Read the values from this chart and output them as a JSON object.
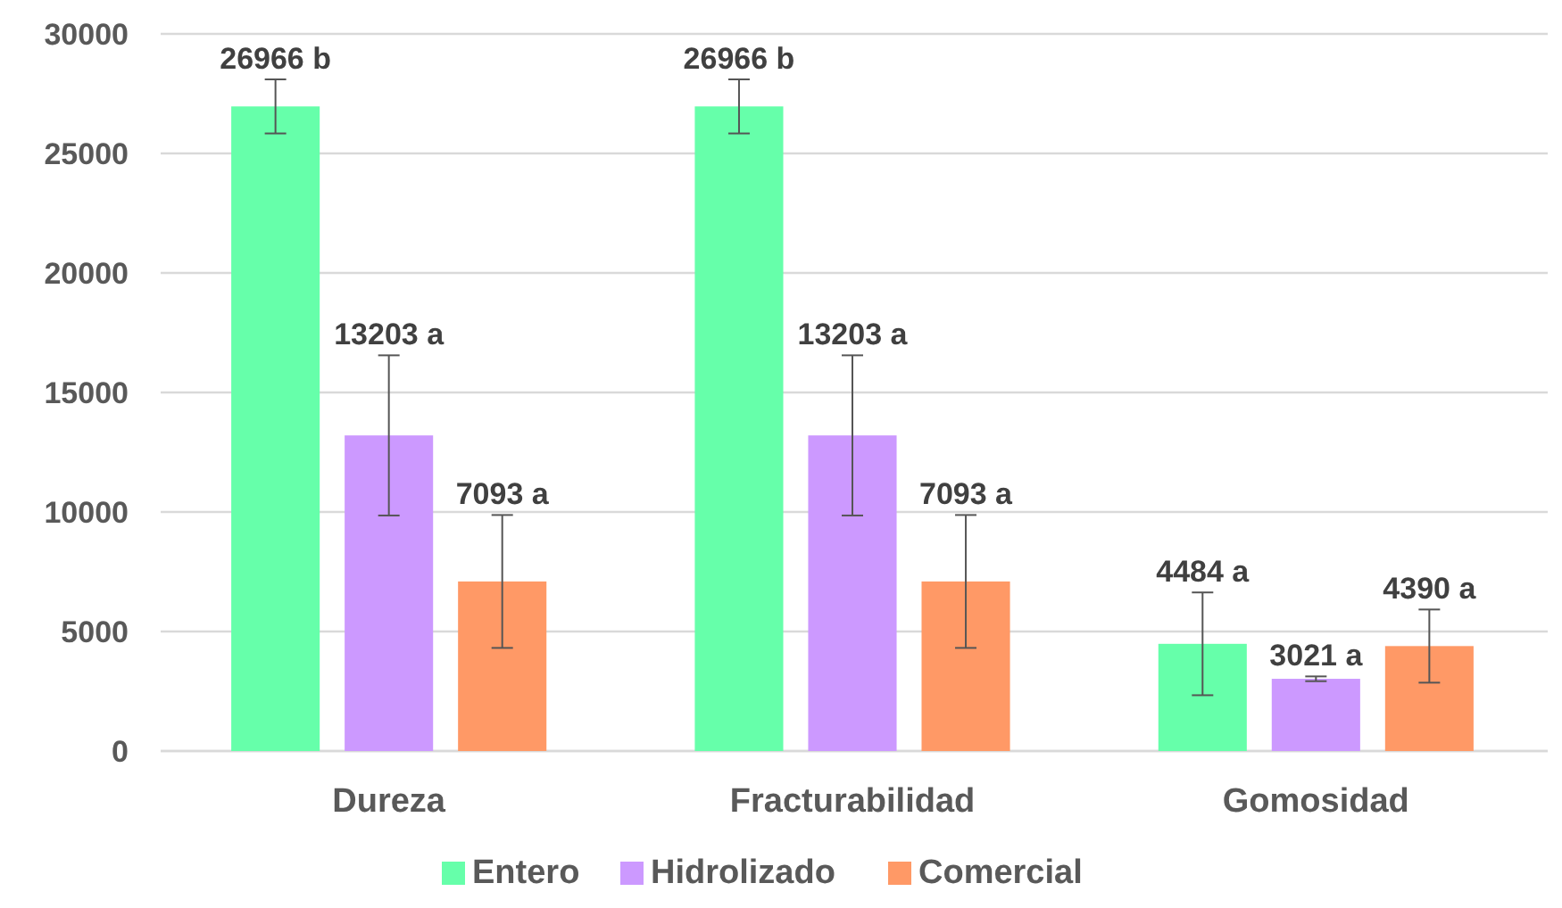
{
  "chart_data": {
    "type": "bar",
    "categories": [
      "Dureza",
      "Fracturabilidad",
      "Gomosidad"
    ],
    "series": [
      {
        "name": "Entero",
        "color": "#66ffaa",
        "values": [
          26966,
          26966,
          4484
        ],
        "errors": [
          1130,
          1130,
          2150
        ],
        "value_labels": [
          "26966 b",
          "26966 b",
          "4484 a"
        ]
      },
      {
        "name": "Hidrolizado",
        "color": "#cc99ff",
        "values": [
          13203,
          13203,
          3021
        ],
        "errors": [
          3350,
          3350,
          100
        ],
        "value_labels": [
          "13203 a",
          "13203 a",
          "3021 a"
        ]
      },
      {
        "name": "Comercial",
        "color": "#ff9966",
        "values": [
          7093,
          7093,
          4390
        ],
        "errors": [
          2780,
          2780,
          1530
        ],
        "value_labels": [
          "7093 a",
          "7093 a",
          "4390 a"
        ]
      }
    ],
    "ylim": [
      0,
      30000
    ],
    "yticks": [
      0,
      5000,
      10000,
      15000,
      20000,
      25000,
      30000
    ],
    "grid": "y",
    "legend": "bottom"
  }
}
